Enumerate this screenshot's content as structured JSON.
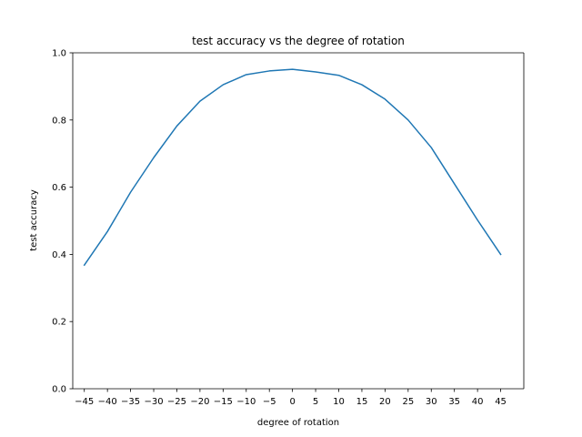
{
  "chart_data": {
    "type": "line",
    "title": "test accuracy vs the degree of rotation",
    "xlabel": "degree of rotation",
    "ylabel": "test accuracy",
    "x": [
      -45,
      -40,
      -35,
      -30,
      -25,
      -20,
      -15,
      -10,
      -5,
      0,
      5,
      10,
      15,
      20,
      25,
      30,
      35,
      40,
      45
    ],
    "x_tick_labels": [
      "−45",
      "−40",
      "−35",
      "−30",
      "−25",
      "−20",
      "−15",
      "−10",
      "−5",
      "0",
      "5",
      "10",
      "15",
      "20",
      "25",
      "30",
      "35",
      "40",
      "45"
    ],
    "series": [
      {
        "color": "#1f77b4",
        "values": [
          0.368,
          0.468,
          0.585,
          0.688,
          0.782,
          0.856,
          0.905,
          0.935,
          0.946,
          0.951,
          0.943,
          0.933,
          0.905,
          0.862,
          0.8,
          0.718,
          0.61,
          0.502,
          0.4
        ]
      }
    ],
    "xlim": [
      -47.5,
      50
    ],
    "ylim": [
      0.0,
      1.0
    ],
    "y_ticks": [
      0.0,
      0.2,
      0.4,
      0.6,
      0.8,
      1.0
    ],
    "y_tick_labels": [
      "0.0",
      "0.2",
      "0.4",
      "0.6",
      "0.8",
      "1.0"
    ],
    "grid": false,
    "legend": "none"
  }
}
